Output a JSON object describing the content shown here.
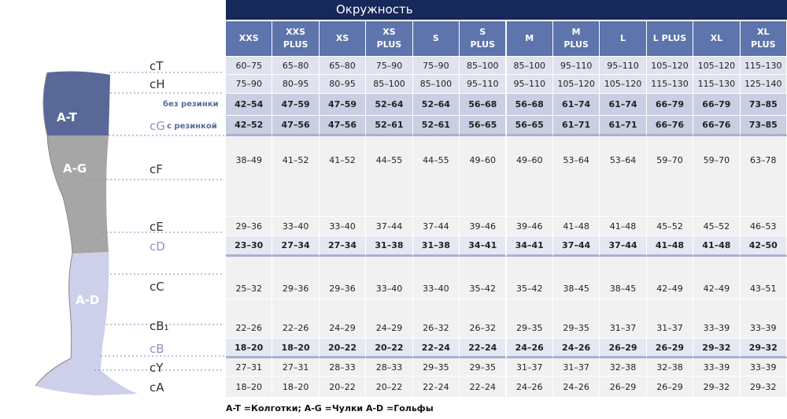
{
  "header": {
    "title": "Окружность"
  },
  "table": {
    "columns": [
      "XXS",
      "XXS PLUS",
      "XS",
      "XS PLUS",
      "S",
      "S PLUS",
      "M",
      "M PLUS",
      "L",
      "L PLUS",
      "XL",
      "XL PLUS"
    ],
    "rows": [
      {
        "label": "cT",
        "cells": [
          "60–75",
          "65–80",
          "65–80",
          "75–90",
          "75–90",
          "85–100",
          "85–100",
          "95–110",
          "95–110",
          "105–120",
          "105–120",
          "115–130"
        ]
      },
      {
        "label": "cH",
        "cells": [
          "75–90",
          "80–95",
          "80–95",
          "85–100",
          "85–100",
          "95–110",
          "95–110",
          "105–120",
          "105–120",
          "115–130",
          "115–130",
          "125–140"
        ]
      },
      {
        "label": "без резинки",
        "cells": [
          "42–54",
          "47–59",
          "47–59",
          "52–64",
          "52–64",
          "56–68",
          "56–68",
          "61–74",
          "61–74",
          "66–79",
          "66–79",
          "73–85"
        ]
      },
      {
        "label": "cG",
        "note": "с резинкой",
        "cells": [
          "42–52",
          "47–56",
          "47–56",
          "52–61",
          "52–61",
          "56–65",
          "56–65",
          "61–71",
          "61–71",
          "66–76",
          "66–76",
          "73–85"
        ]
      },
      {
        "label": "cF",
        "cells": [
          "38–49",
          "41–52",
          "41–52",
          "44–55",
          "44–55",
          "49–60",
          "49–60",
          "53–64",
          "53–64",
          "59–70",
          "59–70",
          "63–78"
        ]
      },
      {
        "label": "cE",
        "cells": [
          "29–36",
          "33–40",
          "33–40",
          "37–44",
          "37–44",
          "39–46",
          "39–46",
          "41–48",
          "41–48",
          "45–52",
          "45–52",
          "46–53"
        ]
      },
      {
        "label": "cD",
        "cells": [
          "23–30",
          "27–34",
          "27–34",
          "31–38",
          "31–38",
          "34–41",
          "34–41",
          "37–44",
          "37–44",
          "41–48",
          "41–48",
          "42–50"
        ]
      },
      {
        "label": "cC",
        "cells": [
          "25–32",
          "29–36",
          "29–36",
          "33–40",
          "33–40",
          "35–42",
          "35–42",
          "38–45",
          "38–45",
          "42–49",
          "42–49",
          "43–51"
        ]
      },
      {
        "label": "cB₁",
        "cells": [
          "22–26",
          "22–26",
          "24–29",
          "24–29",
          "26–32",
          "26–32",
          "29–35",
          "29–35",
          "31–37",
          "31–37",
          "33–39",
          "33–39"
        ]
      },
      {
        "label": "cB",
        "cells": [
          "18–20",
          "18–20",
          "20–22",
          "20–22",
          "22–24",
          "22–24",
          "24–26",
          "24–26",
          "26–29",
          "26–29",
          "29–32",
          "29–32"
        ]
      },
      {
        "label": "cY",
        "cells": [
          "27–31",
          "27–31",
          "28–33",
          "28–33",
          "29–35",
          "29–35",
          "31–37",
          "31–37",
          "32–38",
          "32–38",
          "33–39",
          "33–39"
        ]
      },
      {
        "label": "cA",
        "cells": [
          "18–20",
          "18–20",
          "20–22",
          "20–22",
          "22–24",
          "22–24",
          "24–26",
          "24–26",
          "26–29",
          "26–29",
          "29–32",
          "29–32"
        ]
      }
    ]
  },
  "diagram": {
    "zones": [
      "A-T",
      "A-G",
      "A-D"
    ]
  },
  "legend": "A-T =Колготки; A-G =Чулки A-D =Гольфы"
}
